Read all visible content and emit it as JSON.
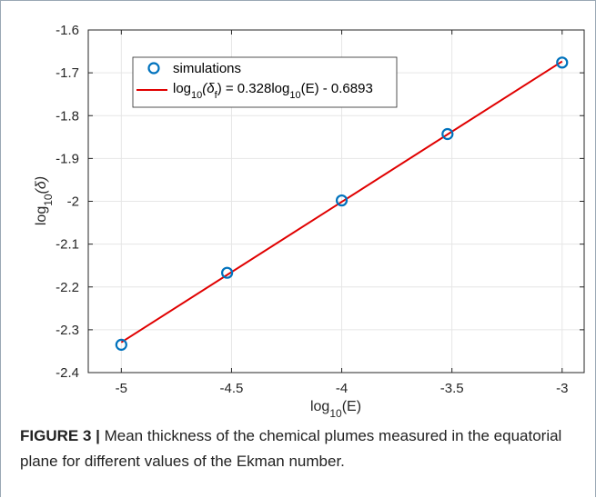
{
  "chart_data": {
    "type": "line",
    "xlabel": {
      "base": "log",
      "sub": "10",
      "tail": "(E)"
    },
    "ylabel": {
      "base": "log",
      "sub": "10",
      "tail": "(δ)"
    },
    "xlim": [
      -5.15,
      -2.9
    ],
    "ylim": [
      -2.4,
      -1.6
    ],
    "x_ticks": [
      -5,
      -4.5,
      -4,
      -3.5,
      -3
    ],
    "x_tick_labels": [
      "-5",
      "-4.5",
      "-4",
      "-3.5",
      "-3"
    ],
    "y_ticks": [
      -1.6,
      -1.7,
      -1.8,
      -1.9,
      -2.0,
      -2.1,
      -2.2,
      -2.3,
      -2.4
    ],
    "y_tick_labels": [
      "-1.6",
      "-1.7",
      "-1.8",
      "-1.9",
      "-2",
      "-2.1",
      "-2.2",
      "-2.3",
      "-2.4"
    ],
    "grid": true,
    "legend_position": "top-left",
    "series": [
      {
        "name": "simulations",
        "style": "markers",
        "color": "#0072BD",
        "x": [
          -5.0,
          -4.52,
          -4.0,
          -3.52,
          -3.0
        ],
        "y": [
          -2.335,
          -2.167,
          -1.998,
          -1.843,
          -1.676
        ]
      },
      {
        "name": "log10(δf) = 0.328log10(E) - 0.6893",
        "style": "line",
        "color": "#E00000",
        "x": [
          -5.0,
          -3.0
        ],
        "y": [
          -2.3293,
          -1.6733
        ]
      }
    ],
    "legend": {
      "markers_label": "simulations",
      "fit_label": {
        "p1": "log",
        "s1": "10",
        "p2": "(δ",
        "s2": "f",
        "p3": ") = 0.328log",
        "s3": "10",
        "p4": "(E) - 0.6893"
      }
    }
  },
  "caption": {
    "label": "FIGURE 3 |",
    "text": " Mean thickness of the chemical plumes measured in the equatorial plane for different values of the Ekman number."
  }
}
